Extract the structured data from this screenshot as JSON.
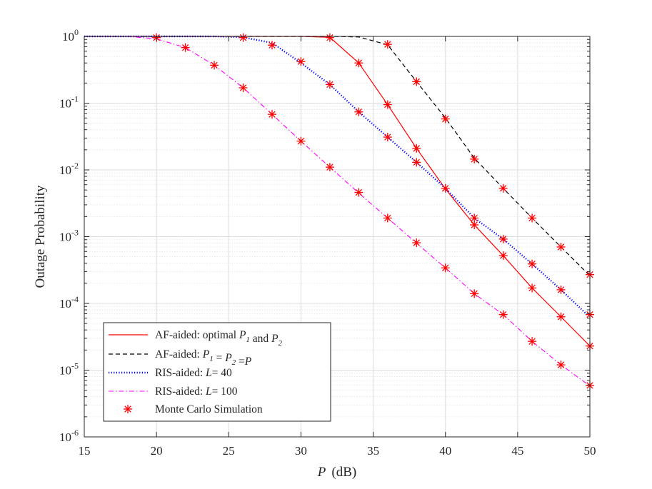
{
  "chart_data": {
    "type": "line",
    "yscale": "log",
    "xlabel": "(dB)",
    "xlabel_var": "P",
    "ylabel": "Outage Probability",
    "xlim": [
      15,
      50
    ],
    "ylim_exponents": [
      -6,
      0
    ],
    "xticks": [
      15,
      20,
      25,
      30,
      35,
      40,
      45,
      50
    ],
    "yticks": [
      -6,
      -5,
      -4,
      -3,
      -2,
      -1,
      0
    ],
    "ytick_base": "10",
    "grid": true,
    "legend_position": "bottom-left",
    "series": [
      {
        "name": "AF-aided: optimal P1 and P2",
        "legend_parts": [
          {
            "t": "AF-aided: optimal ",
            "s": "n"
          },
          {
            "t": "P",
            "s": "i"
          },
          {
            "t": "1",
            "s": "sub"
          },
          {
            "t": " and ",
            "s": "n"
          },
          {
            "t": "P",
            "s": "i"
          },
          {
            "t": "2",
            "s": "sub"
          }
        ],
        "color": "#ff0000",
        "style": "solid",
        "x": [
          15,
          30,
          32,
          34,
          36,
          38,
          40,
          42,
          44,
          46,
          48,
          50
        ],
        "y": [
          1.0,
          1.0,
          0.97,
          0.4,
          0.095,
          0.021,
          0.0052,
          0.0015,
          0.00052,
          0.00017,
          6.3e-05,
          2.3e-05
        ]
      },
      {
        "name": "AF-aided: P1 = P2 =P",
        "legend_parts": [
          {
            "t": "AF-aided: ",
            "s": "n"
          },
          {
            "t": "P",
            "s": "i"
          },
          {
            "t": "1",
            "s": "sub"
          },
          {
            "t": " = ",
            "s": "n"
          },
          {
            "t": "P",
            "s": "i"
          },
          {
            "t": "2",
            "s": "sub"
          },
          {
            "t": " =",
            "s": "n"
          },
          {
            "t": "P",
            "s": "i"
          }
        ],
        "color": "#000000",
        "style": "dashed",
        "x": [
          15,
          32,
          34,
          36,
          38,
          40,
          42,
          44,
          46,
          48,
          50
        ],
        "y": [
          1.0,
          1.0,
          0.98,
          0.75,
          0.21,
          0.06,
          0.015,
          0.0053,
          0.0019,
          0.0007,
          0.00026
        ]
      },
      {
        "name": "RIS-aided: L= 40",
        "legend_parts": [
          {
            "t": "RIS-aided: ",
            "s": "n"
          },
          {
            "t": "L",
            "s": "i"
          },
          {
            "t": "= 40",
            "s": "n"
          }
        ],
        "color": "#0000ff",
        "style": "dotted",
        "x": [
          15,
          24,
          26,
          28,
          30,
          32,
          34,
          36,
          38,
          40,
          42,
          44,
          46,
          48,
          50
        ],
        "y": [
          1.0,
          1.0,
          0.97,
          0.8,
          0.4,
          0.19,
          0.074,
          0.031,
          0.013,
          0.0053,
          0.0019,
          0.00092,
          0.00039,
          0.00016,
          6.2e-05
        ]
      },
      {
        "name": "RIS-aided: L= 100",
        "legend_parts": [
          {
            "t": "RIS-aided: ",
            "s": "n"
          },
          {
            "t": "L",
            "s": "i"
          },
          {
            "t": "= 100",
            "s": "n"
          }
        ],
        "color": "#ff00ff",
        "style": "dashdot",
        "x": [
          15,
          18,
          20,
          22,
          24,
          26,
          28,
          30,
          32,
          34,
          36,
          38,
          40,
          42,
          44,
          46,
          48,
          50
        ],
        "y": [
          1.0,
          1.0,
          0.92,
          0.68,
          0.37,
          0.17,
          0.068,
          0.027,
          0.011,
          0.0045,
          0.0019,
          0.0008,
          0.00034,
          0.00014,
          6.8e-05,
          2.7e-05,
          1.2e-05,
          5.8e-06
        ]
      }
    ],
    "markers": {
      "name": "Monte Carlo Simulation",
      "color": "#ff0000",
      "symbol": "*",
      "points": [
        [
          20,
          0.96
        ],
        [
          22,
          0.68
        ],
        [
          24,
          0.37
        ],
        [
          26,
          0.17
        ],
        [
          28,
          0.068
        ],
        [
          30,
          0.027
        ],
        [
          32,
          0.011
        ],
        [
          34,
          0.0046
        ],
        [
          36,
          0.0019
        ],
        [
          38,
          0.00081
        ],
        [
          40,
          0.00034
        ],
        [
          42,
          0.00014
        ],
        [
          44,
          6.8e-05
        ],
        [
          46,
          2.7e-05
        ],
        [
          48,
          1.2e-05
        ],
        [
          50,
          5.9e-06
        ],
        [
          26,
          0.96
        ],
        [
          28,
          0.74
        ],
        [
          30,
          0.42
        ],
        [
          32,
          0.19
        ],
        [
          34,
          0.074
        ],
        [
          36,
          0.031
        ],
        [
          38,
          0.013
        ],
        [
          42,
          0.0019
        ],
        [
          44,
          0.00092
        ],
        [
          46,
          0.00039
        ],
        [
          48,
          0.00016
        ],
        [
          50,
          6.8e-05
        ],
        [
          32,
          0.96
        ],
        [
          34,
          0.4
        ],
        [
          36,
          0.095
        ],
        [
          38,
          0.021
        ],
        [
          40,
          0.0053
        ],
        [
          42,
          0.0015
        ],
        [
          44,
          0.00052
        ],
        [
          46,
          0.00017
        ],
        [
          48,
          6.3e-05
        ],
        [
          50,
          2.3e-05
        ],
        [
          36,
          0.76
        ],
        [
          38,
          0.21
        ],
        [
          40,
          0.058
        ],
        [
          42,
          0.0145
        ],
        [
          44,
          0.0053
        ],
        [
          46,
          0.0019
        ],
        [
          48,
          0.0007
        ],
        [
          50,
          0.00027
        ]
      ]
    }
  }
}
